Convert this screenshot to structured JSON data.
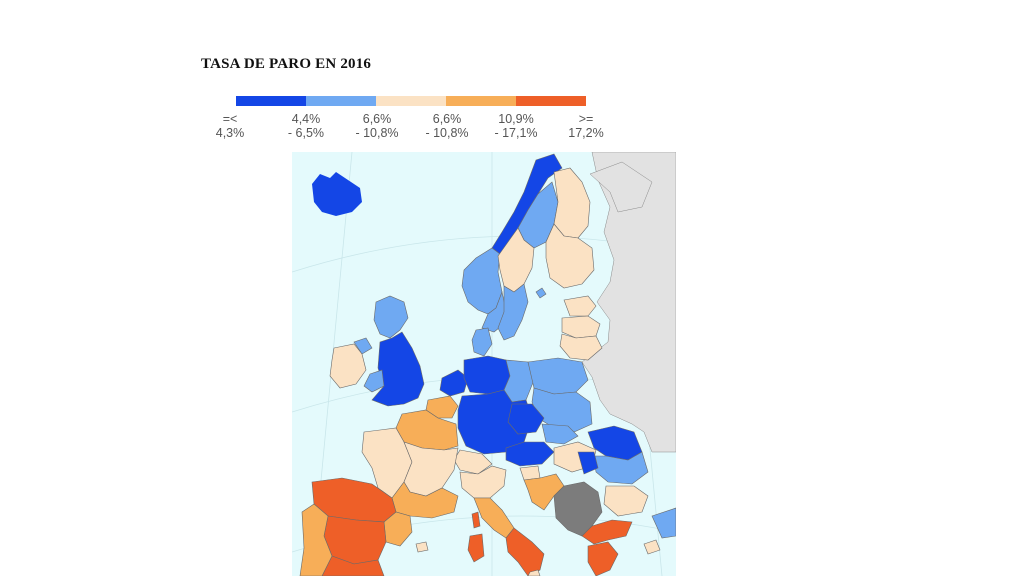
{
  "title": "TASA DE PARO EN 2016",
  "legend": [
    {
      "line1": "=<",
      "line2": "4,3%",
      "color": "#1446e6"
    },
    {
      "line1": "4,4%",
      "line2": "- 6,5%",
      "color": "#6fa9f2"
    },
    {
      "line1": "6,6%",
      "line2": "- 10,8%",
      "color": "#fbe2c4"
    },
    {
      "line1": "6,6%",
      "line2": "- 10,8%",
      "color": "#f7ae58"
    },
    {
      "line1": "10,9%",
      "line2": "- 17,1%",
      "color": "#ee5f28"
    },
    {
      "line1": ">=",
      "line2": "17,2%",
      "color": ""
    }
  ],
  "colors": {
    "sea": "#e4fafc",
    "non_eu": "#e2e2e2",
    "no_data": "#7c7c7c"
  }
}
